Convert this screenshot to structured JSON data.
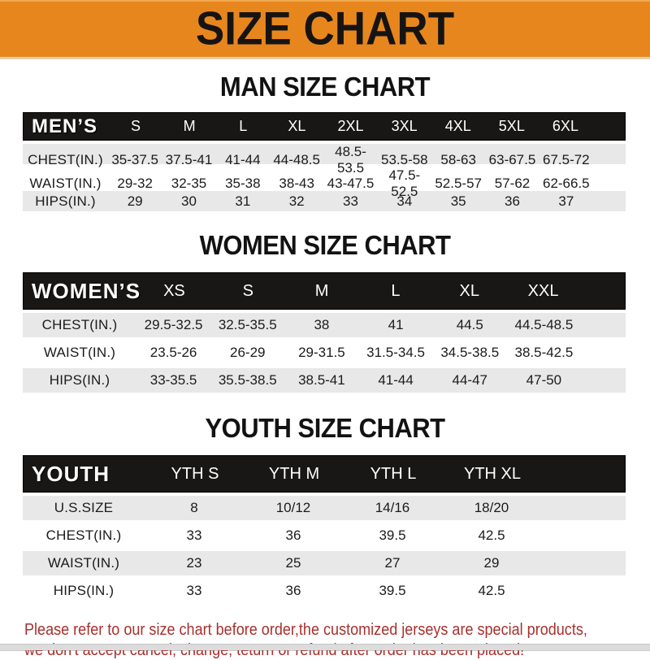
{
  "banner": {
    "title": "SIZE CHART"
  },
  "colors": {
    "banner_bg": "#E8861E",
    "table_header_bg": "#181716",
    "table_header_text": "#FFFFFF",
    "row_stripe": "#E8E8E8",
    "notice_text": "#A8302E"
  },
  "sections": [
    {
      "title": "MAN SIZE CHART",
      "table": {
        "header_label": "MEN’S",
        "columns": [
          "S",
          "M",
          "L",
          "XL",
          "2XL",
          "3XL",
          "4XL",
          "5XL",
          "6XL"
        ],
        "rows": [
          {
            "label": "CHEST(IN.)",
            "values": [
              "35-37.5",
              "37.5-41",
              "41-44",
              "44-48.5",
              "48.5-53.5",
              "53.5-58",
              "58-63",
              "63-67.5",
              "67.5-72"
            ]
          },
          {
            "label": "WAIST(IN.)",
            "values": [
              "29-32",
              "32-35",
              "35-38",
              "38-43",
              "43-47.5",
              "47.5-52.5",
              "52.5-57",
              "57-62",
              "62-66.5"
            ]
          },
          {
            "label": "HIPS(IN.)",
            "values": [
              "29",
              "30",
              "31",
              "32",
              "33",
              "34",
              "35",
              "36",
              "37"
            ]
          }
        ]
      }
    },
    {
      "title": "WOMEN SIZE CHART",
      "table": {
        "header_label": "WOMEN’S",
        "columns": [
          "XS",
          "S",
          "M",
          "L",
          "XL",
          "XXL"
        ],
        "rows": [
          {
            "label": "CHEST(IN.)",
            "values": [
              "29.5-32.5",
              "32.5-35.5",
              "38",
              "41",
              "44.5",
              "44.5-48.5"
            ]
          },
          {
            "label": "WAIST(IN.)",
            "values": [
              "23.5-26",
              "26-29",
              "29-31.5",
              "31.5-34.5",
              "34.5-38.5",
              "38.5-42.5"
            ]
          },
          {
            "label": "HIPS(IN.)",
            "values": [
              "33-35.5",
              "35.5-38.5",
              "38.5-41",
              "41-44",
              "44-47",
              "47-50"
            ]
          }
        ]
      }
    },
    {
      "title": "YOUTH SIZE CHART",
      "table": {
        "header_label": "YOUTH",
        "columns": [
          "YTH S",
          "YTH M",
          "YTH L",
          "YTH XL"
        ],
        "rows": [
          {
            "label": "U.S.SIZE",
            "values": [
              "8",
              "10/12",
              "14/16",
              "18/20"
            ]
          },
          {
            "label": "CHEST(IN.)",
            "values": [
              "33",
              "36",
              "39.5",
              "42.5"
            ]
          },
          {
            "label": "WAIST(IN.)",
            "values": [
              "23",
              "25",
              "27",
              "29"
            ]
          },
          {
            "label": "HIPS(IN.)",
            "values": [
              "33",
              "36",
              "39.5",
              "42.5"
            ]
          }
        ]
      }
    }
  ],
  "footer": {
    "line1": "Please refer to our size chart before order,the customized jerseys are special products,",
    "line2": "we don't accept cancel, change, teturn or refund after order has been placed!"
  }
}
